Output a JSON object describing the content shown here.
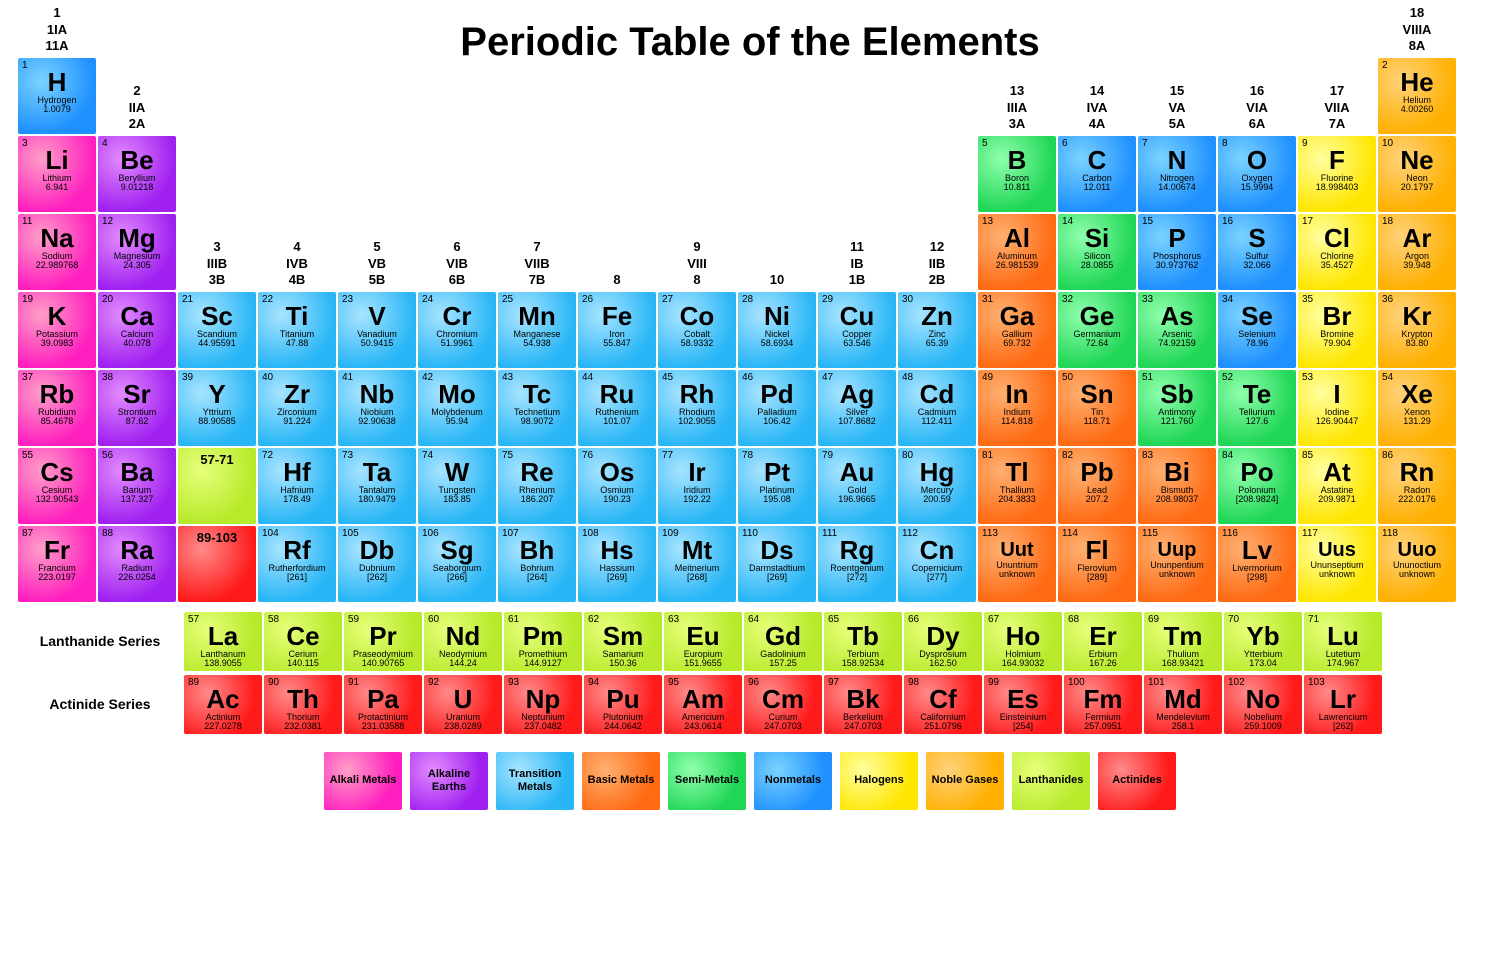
{
  "title": "Periodic Table of the Elements",
  "series_labels": {
    "lan": "Lanthanide\nSeries",
    "act": "Actinide\nSeries"
  },
  "group_headers": {
    "1": "1\n1IA\n11A",
    "2": "2\nIIA\n2A",
    "3": "3\nIIIB\n3B",
    "4": "4\nIVB\n4B",
    "5": "5\nVB\n5B",
    "6": "6\nVIB\n6B",
    "7": "7\nVIIB\n7B",
    "8": "8",
    "9": "9\nVIII\n8",
    "10": "10",
    "11": "11\nIB\n1B",
    "12": "12\nIIB\n2B",
    "13": "13\nIIIA\n3A",
    "14": "14\nIVA\n4A",
    "15": "15\nVA\n5A",
    "16": "16\nVIA\n6A",
    "17": "17\nVIIA\n7A",
    "18": "18\nVIIIA\n8A"
  },
  "categories": {
    "alkali": {
      "label": "Alkali\nMetals",
      "class": "c-alkali"
    },
    "alkearth": {
      "label": "Alkaline\nEarths",
      "class": "c-alkearth"
    },
    "trans": {
      "label": "Transition\nMetals",
      "class": "c-trans"
    },
    "basic": {
      "label": "Basic\nMetals",
      "class": "c-basic"
    },
    "semi": {
      "label": "Semi-Metals",
      "class": "c-semi"
    },
    "nonmetal": {
      "label": "Nonmetals",
      "class": "c-nonmetal"
    },
    "halogen": {
      "label": "Halogens",
      "class": "c-halogen"
    },
    "noble": {
      "label": "Noble\nGases",
      "class": "c-noble"
    },
    "lanth": {
      "label": "Lanthanides",
      "class": "c-lanth"
    },
    "act": {
      "label": "Actinides",
      "class": "c-act"
    }
  },
  "legend_order": [
    "alkali",
    "alkearth",
    "trans",
    "basic",
    "semi",
    "nonmetal",
    "halogen",
    "noble",
    "lanth",
    "act"
  ],
  "placeholders": {
    "lan": "57-71",
    "act": "89-103"
  },
  "elements": [
    {
      "n": 1,
      "s": "H",
      "nm": "Hydrogen",
      "m": "1.0079",
      "c": "nonmetal",
      "col": 1,
      "row": 2
    },
    {
      "n": 2,
      "s": "He",
      "nm": "Helium",
      "m": "4.00260",
      "c": "noble",
      "col": 18,
      "row": 2
    },
    {
      "n": 3,
      "s": "Li",
      "nm": "Lithium",
      "m": "6.941",
      "c": "alkali",
      "col": 1,
      "row": 3
    },
    {
      "n": 4,
      "s": "Be",
      "nm": "Beryllium",
      "m": "9.01218",
      "c": "alkearth",
      "col": 2,
      "row": 3
    },
    {
      "n": 5,
      "s": "B",
      "nm": "Boron",
      "m": "10.811",
      "c": "semi",
      "col": 13,
      "row": 3
    },
    {
      "n": 6,
      "s": "C",
      "nm": "Carbon",
      "m": "12.011",
      "c": "nonmetal",
      "col": 14,
      "row": 3
    },
    {
      "n": 7,
      "s": "N",
      "nm": "Nitrogen",
      "m": "14.00674",
      "c": "nonmetal",
      "col": 15,
      "row": 3
    },
    {
      "n": 8,
      "s": "O",
      "nm": "Oxygen",
      "m": "15.9994",
      "c": "nonmetal",
      "col": 16,
      "row": 3
    },
    {
      "n": 9,
      "s": "F",
      "nm": "Fluorine",
      "m": "18.998403",
      "c": "halogen",
      "col": 17,
      "row": 3
    },
    {
      "n": 10,
      "s": "Ne",
      "nm": "Neon",
      "m": "20.1797",
      "c": "noble",
      "col": 18,
      "row": 3
    },
    {
      "n": 11,
      "s": "Na",
      "nm": "Sodium",
      "m": "22.989768",
      "c": "alkali",
      "col": 1,
      "row": 4
    },
    {
      "n": 12,
      "s": "Mg",
      "nm": "Magnesium",
      "m": "24.305",
      "c": "alkearth",
      "col": 2,
      "row": 4
    },
    {
      "n": 13,
      "s": "Al",
      "nm": "Aluminum",
      "m": "26.981539",
      "c": "basic",
      "col": 13,
      "row": 4
    },
    {
      "n": 14,
      "s": "Si",
      "nm": "Silicon",
      "m": "28.0855",
      "c": "semi",
      "col": 14,
      "row": 4
    },
    {
      "n": 15,
      "s": "P",
      "nm": "Phosphorus",
      "m": "30.973762",
      "c": "nonmetal",
      "col": 15,
      "row": 4
    },
    {
      "n": 16,
      "s": "S",
      "nm": "Sulfur",
      "m": "32.066",
      "c": "nonmetal",
      "col": 16,
      "row": 4
    },
    {
      "n": 17,
      "s": "Cl",
      "nm": "Chlorine",
      "m": "35.4527",
      "c": "halogen",
      "col": 17,
      "row": 4
    },
    {
      "n": 18,
      "s": "Ar",
      "nm": "Argon",
      "m": "39.948",
      "c": "noble",
      "col": 18,
      "row": 4
    },
    {
      "n": 19,
      "s": "K",
      "nm": "Potassium",
      "m": "39.0983",
      "c": "alkali",
      "col": 1,
      "row": 5
    },
    {
      "n": 20,
      "s": "Ca",
      "nm": "Calcium",
      "m": "40.078",
      "c": "alkearth",
      "col": 2,
      "row": 5
    },
    {
      "n": 21,
      "s": "Sc",
      "nm": "Scandium",
      "m": "44.95591",
      "c": "trans",
      "col": 3,
      "row": 5
    },
    {
      "n": 22,
      "s": "Ti",
      "nm": "Titanium",
      "m": "47.88",
      "c": "trans",
      "col": 4,
      "row": 5
    },
    {
      "n": 23,
      "s": "V",
      "nm": "Vanadium",
      "m": "50.9415",
      "c": "trans",
      "col": 5,
      "row": 5
    },
    {
      "n": 24,
      "s": "Cr",
      "nm": "Chromium",
      "m": "51.9961",
      "c": "trans",
      "col": 6,
      "row": 5
    },
    {
      "n": 25,
      "s": "Mn",
      "nm": "Manganese",
      "m": "54.938",
      "c": "trans",
      "col": 7,
      "row": 5
    },
    {
      "n": 26,
      "s": "Fe",
      "nm": "Iron",
      "m": "55.847",
      "c": "trans",
      "col": 8,
      "row": 5
    },
    {
      "n": 27,
      "s": "Co",
      "nm": "Cobalt",
      "m": "58.9332",
      "c": "trans",
      "col": 9,
      "row": 5
    },
    {
      "n": 28,
      "s": "Ni",
      "nm": "Nickel",
      "m": "58.6934",
      "c": "trans",
      "col": 10,
      "row": 5
    },
    {
      "n": 29,
      "s": "Cu",
      "nm": "Copper",
      "m": "63.546",
      "c": "trans",
      "col": 11,
      "row": 5
    },
    {
      "n": 30,
      "s": "Zn",
      "nm": "Zinc",
      "m": "65.39",
      "c": "trans",
      "col": 12,
      "row": 5
    },
    {
      "n": 31,
      "s": "Ga",
      "nm": "Gallium",
      "m": "69.732",
      "c": "basic",
      "col": 13,
      "row": 5
    },
    {
      "n": 32,
      "s": "Ge",
      "nm": "Germanium",
      "m": "72.64",
      "c": "semi",
      "col": 14,
      "row": 5
    },
    {
      "n": 33,
      "s": "As",
      "nm": "Arsenic",
      "m": "74.92159",
      "c": "semi",
      "col": 15,
      "row": 5
    },
    {
      "n": 34,
      "s": "Se",
      "nm": "Selenium",
      "m": "78.96",
      "c": "nonmetal",
      "col": 16,
      "row": 5
    },
    {
      "n": 35,
      "s": "Br",
      "nm": "Bromine",
      "m": "79.904",
      "c": "halogen",
      "col": 17,
      "row": 5
    },
    {
      "n": 36,
      "s": "Kr",
      "nm": "Krypton",
      "m": "83.80",
      "c": "noble",
      "col": 18,
      "row": 5
    },
    {
      "n": 37,
      "s": "Rb",
      "nm": "Rubidium",
      "m": "85.4678",
      "c": "alkali",
      "col": 1,
      "row": 6
    },
    {
      "n": 38,
      "s": "Sr",
      "nm": "Strontium",
      "m": "87.62",
      "c": "alkearth",
      "col": 2,
      "row": 6
    },
    {
      "n": 39,
      "s": "Y",
      "nm": "Yttrium",
      "m": "88.90585",
      "c": "trans",
      "col": 3,
      "row": 6
    },
    {
      "n": 40,
      "s": "Zr",
      "nm": "Zirconium",
      "m": "91.224",
      "c": "trans",
      "col": 4,
      "row": 6
    },
    {
      "n": 41,
      "s": "Nb",
      "nm": "Niobium",
      "m": "92.90638",
      "c": "trans",
      "col": 5,
      "row": 6
    },
    {
      "n": 42,
      "s": "Mo",
      "nm": "Molybdenum",
      "m": "95.94",
      "c": "trans",
      "col": 6,
      "row": 6
    },
    {
      "n": 43,
      "s": "Tc",
      "nm": "Technetium",
      "m": "98.9072",
      "c": "trans",
      "col": 7,
      "row": 6
    },
    {
      "n": 44,
      "s": "Ru",
      "nm": "Ruthenium",
      "m": "101.07",
      "c": "trans",
      "col": 8,
      "row": 6
    },
    {
      "n": 45,
      "s": "Rh",
      "nm": "Rhodium",
      "m": "102.9055",
      "c": "trans",
      "col": 9,
      "row": 6
    },
    {
      "n": 46,
      "s": "Pd",
      "nm": "Palladium",
      "m": "106.42",
      "c": "trans",
      "col": 10,
      "row": 6
    },
    {
      "n": 47,
      "s": "Ag",
      "nm": "Silver",
      "m": "107.8682",
      "c": "trans",
      "col": 11,
      "row": 6
    },
    {
      "n": 48,
      "s": "Cd",
      "nm": "Cadmium",
      "m": "112.411",
      "c": "trans",
      "col": 12,
      "row": 6
    },
    {
      "n": 49,
      "s": "In",
      "nm": "Indium",
      "m": "114.818",
      "c": "basic",
      "col": 13,
      "row": 6
    },
    {
      "n": 50,
      "s": "Sn",
      "nm": "Tin",
      "m": "118.71",
      "c": "basic",
      "col": 14,
      "row": 6
    },
    {
      "n": 51,
      "s": "Sb",
      "nm": "Antimony",
      "m": "121.760",
      "c": "semi",
      "col": 15,
      "row": 6
    },
    {
      "n": 52,
      "s": "Te",
      "nm": "Tellurium",
      "m": "127.6",
      "c": "semi",
      "col": 16,
      "row": 6
    },
    {
      "n": 53,
      "s": "I",
      "nm": "Iodine",
      "m": "126.90447",
      "c": "halogen",
      "col": 17,
      "row": 6
    },
    {
      "n": 54,
      "s": "Xe",
      "nm": "Xenon",
      "m": "131.29",
      "c": "noble",
      "col": 18,
      "row": 6
    },
    {
      "n": 55,
      "s": "Cs",
      "nm": "Cesium",
      "m": "132.90543",
      "c": "alkali",
      "col": 1,
      "row": 7
    },
    {
      "n": 56,
      "s": "Ba",
      "nm": "Barium",
      "m": "137.327",
      "c": "alkearth",
      "col": 2,
      "row": 7
    },
    {
      "n": 72,
      "s": "Hf",
      "nm": "Hafnium",
      "m": "178.49",
      "c": "trans",
      "col": 4,
      "row": 7
    },
    {
      "n": 73,
      "s": "Ta",
      "nm": "Tantalum",
      "m": "180.9479",
      "c": "trans",
      "col": 5,
      "row": 7
    },
    {
      "n": 74,
      "s": "W",
      "nm": "Tungsten",
      "m": "183.85",
      "c": "trans",
      "col": 6,
      "row": 7
    },
    {
      "n": 75,
      "s": "Re",
      "nm": "Rhenium",
      "m": "186.207",
      "c": "trans",
      "col": 7,
      "row": 7
    },
    {
      "n": 76,
      "s": "Os",
      "nm": "Osmium",
      "m": "190.23",
      "c": "trans",
      "col": 8,
      "row": 7
    },
    {
      "n": 77,
      "s": "Ir",
      "nm": "Iridium",
      "m": "192.22",
      "c": "trans",
      "col": 9,
      "row": 7
    },
    {
      "n": 78,
      "s": "Pt",
      "nm": "Platinum",
      "m": "195.08",
      "c": "trans",
      "col": 10,
      "row": 7
    },
    {
      "n": 79,
      "s": "Au",
      "nm": "Gold",
      "m": "196.9665",
      "c": "trans",
      "col": 11,
      "row": 7
    },
    {
      "n": 80,
      "s": "Hg",
      "nm": "Mercury",
      "m": "200.59",
      "c": "trans",
      "col": 12,
      "row": 7
    },
    {
      "n": 81,
      "s": "Tl",
      "nm": "Thallium",
      "m": "204.3833",
      "c": "basic",
      "col": 13,
      "row": 7
    },
    {
      "n": 82,
      "s": "Pb",
      "nm": "Lead",
      "m": "207.2",
      "c": "basic",
      "col": 14,
      "row": 7
    },
    {
      "n": 83,
      "s": "Bi",
      "nm": "Bismuth",
      "m": "208.98037",
      "c": "basic",
      "col": 15,
      "row": 7
    },
    {
      "n": 84,
      "s": "Po",
      "nm": "Polonium",
      "m": "[208.9824]",
      "c": "semi",
      "col": 16,
      "row": 7
    },
    {
      "n": 85,
      "s": "At",
      "nm": "Astatine",
      "m": "209.9871",
      "c": "halogen",
      "col": 17,
      "row": 7
    },
    {
      "n": 86,
      "s": "Rn",
      "nm": "Radon",
      "m": "222.0176",
      "c": "noble",
      "col": 18,
      "row": 7
    },
    {
      "n": 87,
      "s": "Fr",
      "nm": "Francium",
      "m": "223.0197",
      "c": "alkali",
      "col": 1,
      "row": 8
    },
    {
      "n": 88,
      "s": "Ra",
      "nm": "Radium",
      "m": "226.0254",
      "c": "alkearth",
      "col": 2,
      "row": 8
    },
    {
      "n": 104,
      "s": "Rf",
      "nm": "Rutherfordium",
      "m": "[261]",
      "c": "trans",
      "col": 4,
      "row": 8
    },
    {
      "n": 105,
      "s": "Db",
      "nm": "Dubnium",
      "m": "[262]",
      "c": "trans",
      "col": 5,
      "row": 8
    },
    {
      "n": 106,
      "s": "Sg",
      "nm": "Seaborgium",
      "m": "[266]",
      "c": "trans",
      "col": 6,
      "row": 8
    },
    {
      "n": 107,
      "s": "Bh",
      "nm": "Bohrium",
      "m": "[264]",
      "c": "trans",
      "col": 7,
      "row": 8
    },
    {
      "n": 108,
      "s": "Hs",
      "nm": "Hassium",
      "m": "[269]",
      "c": "trans",
      "col": 8,
      "row": 8
    },
    {
      "n": 109,
      "s": "Mt",
      "nm": "Meitnerium",
      "m": "[268]",
      "c": "trans",
      "col": 9,
      "row": 8
    },
    {
      "n": 110,
      "s": "Ds",
      "nm": "Darmstadtium",
      "m": "[269]",
      "c": "trans",
      "col": 10,
      "row": 8
    },
    {
      "n": 111,
      "s": "Rg",
      "nm": "Roentgenium",
      "m": "[272]",
      "c": "trans",
      "col": 11,
      "row": 8
    },
    {
      "n": 112,
      "s": "Cn",
      "nm": "Copernicium",
      "m": "[277]",
      "c": "trans",
      "col": 12,
      "row": 8
    },
    {
      "n": 113,
      "s": "Uut",
      "nm": "Ununtrium",
      "m": "unknown",
      "c": "basic",
      "col": 13,
      "row": 8
    },
    {
      "n": 114,
      "s": "Fl",
      "nm": "Flerovium",
      "m": "[289]",
      "c": "basic",
      "col": 14,
      "row": 8
    },
    {
      "n": 115,
      "s": "Uup",
      "nm": "Ununpentium",
      "m": "unknown",
      "c": "basic",
      "col": 15,
      "row": 8
    },
    {
      "n": 116,
      "s": "Lv",
      "nm": "Livermorium",
      "m": "[298]",
      "c": "basic",
      "col": 16,
      "row": 8
    },
    {
      "n": 117,
      "s": "Uus",
      "nm": "Ununseptium",
      "m": "unknown",
      "c": "halogen",
      "col": 17,
      "row": 8
    },
    {
      "n": 118,
      "s": "Uuo",
      "nm": "Ununoctium",
      "m": "unknown",
      "c": "noble",
      "col": 18,
      "row": 8
    }
  ],
  "lanthanides": [
    {
      "n": 57,
      "s": "La",
      "nm": "Lanthanum",
      "m": "138.9055"
    },
    {
      "n": 58,
      "s": "Ce",
      "nm": "Cerium",
      "m": "140.115"
    },
    {
      "n": 59,
      "s": "Pr",
      "nm": "Praseodymium",
      "m": "140.90765"
    },
    {
      "n": 60,
      "s": "Nd",
      "nm": "Neodymium",
      "m": "144.24"
    },
    {
      "n": 61,
      "s": "Pm",
      "nm": "Promethium",
      "m": "144.9127"
    },
    {
      "n": 62,
      "s": "Sm",
      "nm": "Samarium",
      "m": "150.36"
    },
    {
      "n": 63,
      "s": "Eu",
      "nm": "Europium",
      "m": "151.9655"
    },
    {
      "n": 64,
      "s": "Gd",
      "nm": "Gadolinium",
      "m": "157.25"
    },
    {
      "n": 65,
      "s": "Tb",
      "nm": "Terbium",
      "m": "158.92534"
    },
    {
      "n": 66,
      "s": "Dy",
      "nm": "Dysprosium",
      "m": "162.50"
    },
    {
      "n": 67,
      "s": "Ho",
      "nm": "Holmium",
      "m": "164.93032"
    },
    {
      "n": 68,
      "s": "Er",
      "nm": "Erbium",
      "m": "167.26"
    },
    {
      "n": 69,
      "s": "Tm",
      "nm": "Thulium",
      "m": "168.93421"
    },
    {
      "n": 70,
      "s": "Yb",
      "nm": "Ytterbium",
      "m": "173.04"
    },
    {
      "n": 71,
      "s": "Lu",
      "nm": "Lutetium",
      "m": "174.967"
    }
  ],
  "actinides": [
    {
      "n": 89,
      "s": "Ac",
      "nm": "Actinium",
      "m": "227.0278"
    },
    {
      "n": 90,
      "s": "Th",
      "nm": "Thorium",
      "m": "232.0381"
    },
    {
      "n": 91,
      "s": "Pa",
      "nm": "Protactinium",
      "m": "231.03588"
    },
    {
      "n": 92,
      "s": "U",
      "nm": "Uranium",
      "m": "238.0289"
    },
    {
      "n": 93,
      "s": "Np",
      "nm": "Neptunium",
      "m": "237.0482"
    },
    {
      "n": 94,
      "s": "Pu",
      "nm": "Plutonium",
      "m": "244.0642"
    },
    {
      "n": 95,
      "s": "Am",
      "nm": "Americium",
      "m": "243.0614"
    },
    {
      "n": 96,
      "s": "Cm",
      "nm": "Curium",
      "m": "247.0703"
    },
    {
      "n": 97,
      "s": "Bk",
      "nm": "Berkelium",
      "m": "247.0703"
    },
    {
      "n": 98,
      "s": "Cf",
      "nm": "Californium",
      "m": "251.0796"
    },
    {
      "n": 99,
      "s": "Es",
      "nm": "Einsteinium",
      "m": "[254]"
    },
    {
      "n": 100,
      "s": "Fm",
      "nm": "Fermium",
      "m": "257.0951"
    },
    {
      "n": 101,
      "s": "Md",
      "nm": "Mendelevium",
      "m": "258.1"
    },
    {
      "n": 102,
      "s": "No",
      "nm": "Nobelium",
      "m": "259.1009"
    },
    {
      "n": 103,
      "s": "Lr",
      "nm": "Lawrencium",
      "m": "[262]"
    }
  ]
}
